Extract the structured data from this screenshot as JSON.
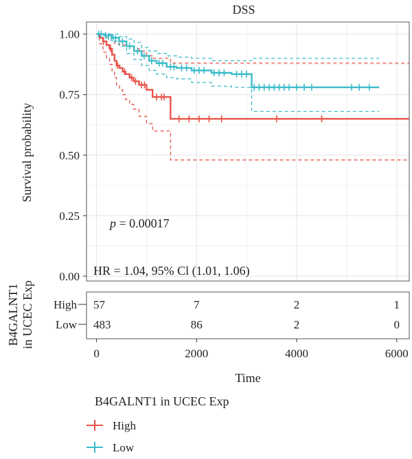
{
  "chart_data": {
    "type": "line",
    "subtype": "kaplan-meier",
    "title": "DSS",
    "xlabel": "Time",
    "ylabel": "Survival probability",
    "xlim": [
      -200,
      6250
    ],
    "ylim": [
      -0.02,
      1.05
    ],
    "xticks": [
      0,
      2000,
      4000,
      6000
    ],
    "xtick_labels": [
      "0",
      "2000",
      "4000",
      "6000"
    ],
    "yticks": [
      0.0,
      0.25,
      0.5,
      0.75,
      1.0
    ],
    "ytick_labels": [
      "0.00",
      "0.25",
      "0.50",
      "0.75",
      "1.00"
    ],
    "grid": true,
    "annotations": {
      "p_prefix": "p",
      "p_value": " = 0.00017",
      "hr_text": "HR = 1.04, 95% Cl (1.01, 1.06)"
    },
    "legend": {
      "title": "B4GALNT1 in UCEC Exp",
      "position": "bottom-left",
      "entries": [
        "High",
        "Low"
      ]
    },
    "series": [
      {
        "name": "High",
        "color": "#E8524A",
        "steps": [
          [
            0,
            1.0
          ],
          [
            60,
            0.985
          ],
          [
            130,
            0.97
          ],
          [
            200,
            0.955
          ],
          [
            260,
            0.94
          ],
          [
            310,
            0.915
          ],
          [
            360,
            0.89
          ],
          [
            400,
            0.87
          ],
          [
            460,
            0.86
          ],
          [
            520,
            0.845
          ],
          [
            580,
            0.835
          ],
          [
            660,
            0.82
          ],
          [
            740,
            0.805
          ],
          [
            850,
            0.79
          ],
          [
            1000,
            0.77
          ],
          [
            1120,
            0.74
          ],
          [
            1480,
            0.65
          ],
          [
            6250,
            0.65
          ]
        ],
        "lower": [
          [
            0,
            1.0
          ],
          [
            60,
            0.96
          ],
          [
            130,
            0.925
          ],
          [
            200,
            0.9
          ],
          [
            260,
            0.875
          ],
          [
            310,
            0.845
          ],
          [
            360,
            0.82
          ],
          [
            400,
            0.79
          ],
          [
            460,
            0.77
          ],
          [
            520,
            0.75
          ],
          [
            580,
            0.73
          ],
          [
            660,
            0.71
          ],
          [
            740,
            0.69
          ],
          [
            850,
            0.66
          ],
          [
            1000,
            0.63
          ],
          [
            1120,
            0.6
          ],
          [
            1480,
            0.48
          ],
          [
            6250,
            0.48
          ]
        ],
        "upper": [
          [
            0,
            1.0
          ],
          [
            100,
            1.0
          ],
          [
            200,
            0.985
          ],
          [
            300,
            0.97
          ],
          [
            360,
            0.96
          ],
          [
            460,
            0.955
          ],
          [
            580,
            0.95
          ],
          [
            740,
            0.94
          ],
          [
            850,
            0.93
          ],
          [
            1000,
            0.91
          ],
          [
            1120,
            0.9
          ],
          [
            1480,
            0.88
          ],
          [
            6250,
            0.88
          ]
        ],
        "censors": [
          [
            140,
            0.97
          ],
          [
            280,
            0.94
          ],
          [
            420,
            0.87
          ],
          [
            560,
            0.845
          ],
          [
            700,
            0.82
          ],
          [
            780,
            0.805
          ],
          [
            900,
            0.79
          ],
          [
            960,
            0.79
          ],
          [
            1200,
            0.74
          ],
          [
            1300,
            0.74
          ],
          [
            1350,
            0.74
          ],
          [
            1650,
            0.65
          ],
          [
            1850,
            0.65
          ],
          [
            2050,
            0.65
          ],
          [
            2250,
            0.65
          ],
          [
            2500,
            0.65
          ],
          [
            3600,
            0.65
          ],
          [
            4500,
            0.65
          ]
        ]
      },
      {
        "name": "Low",
        "color": "#3BBBC9",
        "steps": [
          [
            0,
            1.0
          ],
          [
            150,
            0.995
          ],
          [
            300,
            0.985
          ],
          [
            450,
            0.97
          ],
          [
            600,
            0.95
          ],
          [
            750,
            0.93
          ],
          [
            900,
            0.91
          ],
          [
            1050,
            0.89
          ],
          [
            1200,
            0.88
          ],
          [
            1400,
            0.865
          ],
          [
            1600,
            0.86
          ],
          [
            1900,
            0.85
          ],
          [
            2300,
            0.84
          ],
          [
            2700,
            0.835
          ],
          [
            3100,
            0.78
          ],
          [
            5650,
            0.78
          ]
        ],
        "lower": [
          [
            0,
            1.0
          ],
          [
            150,
            0.985
          ],
          [
            300,
            0.97
          ],
          [
            450,
            0.95
          ],
          [
            600,
            0.92
          ],
          [
            750,
            0.895
          ],
          [
            900,
            0.87
          ],
          [
            1050,
            0.85
          ],
          [
            1200,
            0.835
          ],
          [
            1400,
            0.82
          ],
          [
            1600,
            0.815
          ],
          [
            1900,
            0.8
          ],
          [
            2300,
            0.785
          ],
          [
            2700,
            0.78
          ],
          [
            3100,
            0.68
          ],
          [
            5650,
            0.68
          ]
        ],
        "upper": [
          [
            0,
            1.0
          ],
          [
            300,
            1.0
          ],
          [
            450,
            0.99
          ],
          [
            600,
            0.98
          ],
          [
            750,
            0.965
          ],
          [
            900,
            0.945
          ],
          [
            1050,
            0.93
          ],
          [
            1200,
            0.92
          ],
          [
            1400,
            0.91
          ],
          [
            1600,
            0.905
          ],
          [
            1900,
            0.9
          ],
          [
            2300,
            0.89
          ],
          [
            2700,
            0.89
          ],
          [
            3100,
            0.9
          ],
          [
            5650,
            0.9
          ]
        ],
        "censors": [
          [
            40,
            1.0
          ],
          [
            90,
            1.0
          ],
          [
            180,
            0.995
          ],
          [
            240,
            0.99
          ],
          [
            330,
            0.985
          ],
          [
            380,
            0.98
          ],
          [
            520,
            0.97
          ],
          [
            660,
            0.95
          ],
          [
            820,
            0.93
          ],
          [
            950,
            0.91
          ],
          [
            1100,
            0.89
          ],
          [
            1250,
            0.88
          ],
          [
            1320,
            0.88
          ],
          [
            1480,
            0.865
          ],
          [
            1550,
            0.865
          ],
          [
            1700,
            0.86
          ],
          [
            1800,
            0.86
          ],
          [
            1950,
            0.85
          ],
          [
            2050,
            0.85
          ],
          [
            2150,
            0.85
          ],
          [
            2350,
            0.84
          ],
          [
            2450,
            0.84
          ],
          [
            2550,
            0.84
          ],
          [
            2800,
            0.835
          ],
          [
            2900,
            0.835
          ],
          [
            3000,
            0.835
          ],
          [
            3150,
            0.78
          ],
          [
            3250,
            0.78
          ],
          [
            3350,
            0.78
          ],
          [
            3450,
            0.78
          ],
          [
            3550,
            0.78
          ],
          [
            3650,
            0.78
          ],
          [
            3750,
            0.78
          ],
          [
            3850,
            0.78
          ],
          [
            4000,
            0.78
          ],
          [
            4150,
            0.78
          ],
          [
            4300,
            0.78
          ],
          [
            5100,
            0.78
          ],
          [
            5250,
            0.78
          ],
          [
            5450,
            0.78
          ]
        ]
      }
    ],
    "risk_table": {
      "ylabel_lines": [
        "B4GALNT1",
        "in UCEC Exp"
      ],
      "times": [
        0,
        2000,
        4000,
        6000
      ],
      "rows": [
        {
          "name": "High",
          "counts": [
            "57",
            "7",
            "2",
            "1"
          ]
        },
        {
          "name": "Low",
          "counts": [
            "483",
            "86",
            "2",
            "0"
          ]
        }
      ]
    }
  }
}
